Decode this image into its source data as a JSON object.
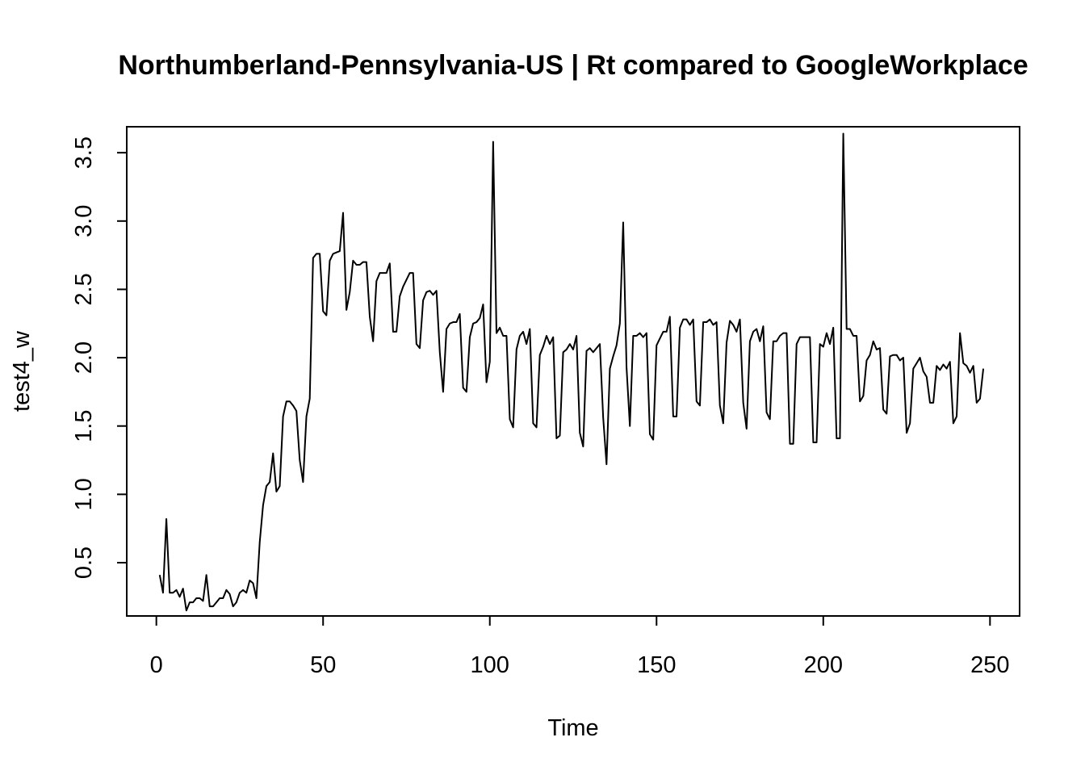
{
  "chart_data": {
    "type": "line",
    "title": "Northumberland-Pennsylvania-US | Rt compared to GoogleWorkplace",
    "xlabel": "Time",
    "ylabel": "test4_w",
    "xlim": [
      -8.88,
      258.88
    ],
    "ylim": [
      0.11,
      3.69
    ],
    "x_ticks": [
      0,
      50,
      100,
      150,
      200,
      250
    ],
    "x_tick_labels": [
      "0",
      "50",
      "100",
      "150",
      "200",
      "250"
    ],
    "y_ticks": [
      0.5,
      1.0,
      1.5,
      2.0,
      2.5,
      3.0,
      3.5
    ],
    "y_tick_labels": [
      "0.5",
      "1.0",
      "1.5",
      "2.0",
      "2.5",
      "3.0",
      "3.5"
    ],
    "grid": false,
    "series": [
      {
        "color": "#000000",
        "x_start": 1,
        "values": [
          0.41,
          0.28,
          0.82,
          0.28,
          0.28,
          0.3,
          0.25,
          0.31,
          0.15,
          0.21,
          0.21,
          0.24,
          0.24,
          0.22,
          0.41,
          0.18,
          0.18,
          0.21,
          0.24,
          0.24,
          0.3,
          0.27,
          0.18,
          0.21,
          0.28,
          0.3,
          0.28,
          0.37,
          0.35,
          0.24,
          0.65,
          0.92,
          1.06,
          1.09,
          1.3,
          1.02,
          1.06,
          1.57,
          1.68,
          1.68,
          1.65,
          1.61,
          1.25,
          1.09,
          1.57,
          1.7,
          2.73,
          2.76,
          2.76,
          2.34,
          2.31,
          2.71,
          2.76,
          2.77,
          2.78,
          3.06,
          2.35,
          2.48,
          2.71,
          2.68,
          2.68,
          2.7,
          2.7,
          2.3,
          2.12,
          2.56,
          2.62,
          2.62,
          2.62,
          2.69,
          2.19,
          2.19,
          2.45,
          2.52,
          2.57,
          2.62,
          2.62,
          2.1,
          2.07,
          2.42,
          2.48,
          2.49,
          2.46,
          2.49,
          2.04,
          1.75,
          2.21,
          2.25,
          2.26,
          2.26,
          2.32,
          1.78,
          1.75,
          2.15,
          2.25,
          2.26,
          2.29,
          2.39,
          1.82,
          1.97,
          3.58,
          2.18,
          2.22,
          2.16,
          2.16,
          1.55,
          1.49,
          2.06,
          2.16,
          2.19,
          2.1,
          2.21,
          1.52,
          1.49,
          2.02,
          2.08,
          2.16,
          2.1,
          2.15,
          1.41,
          1.43,
          2.04,
          2.06,
          2.1,
          2.06,
          2.16,
          1.45,
          1.35,
          2.05,
          2.07,
          2.04,
          2.07,
          2.1,
          1.56,
          1.22,
          1.92,
          2.01,
          2.09,
          2.25,
          2.99,
          1.93,
          1.5,
          2.16,
          2.16,
          2.18,
          2.15,
          2.18,
          1.44,
          1.4,
          2.09,
          2.14,
          2.19,
          2.19,
          2.3,
          1.57,
          1.57,
          2.22,
          2.28,
          2.28,
          2.24,
          2.28,
          1.68,
          1.65,
          2.26,
          2.26,
          2.28,
          2.24,
          2.26,
          1.65,
          1.52,
          2.11,
          2.27,
          2.24,
          2.19,
          2.28,
          1.67,
          1.48,
          2.12,
          2.19,
          2.21,
          2.12,
          2.23,
          1.6,
          1.55,
          2.12,
          2.12,
          2.16,
          2.18,
          2.18,
          1.37,
          1.37,
          2.1,
          2.15,
          2.15,
          2.15,
          2.15,
          1.38,
          1.38,
          2.1,
          2.08,
          2.18,
          2.1,
          2.22,
          1.41,
          1.41,
          3.64,
          2.21,
          2.21,
          2.16,
          2.16,
          1.68,
          1.72,
          1.98,
          2.02,
          2.12,
          2.06,
          2.07,
          1.62,
          1.59,
          2.01,
          2.02,
          2.02,
          1.98,
          2.0,
          1.45,
          1.52,
          1.92,
          1.96,
          2.0,
          1.9,
          1.86,
          1.67,
          1.67,
          1.94,
          1.91,
          1.95,
          1.92,
          1.97,
          1.52,
          1.57,
          2.18,
          1.96,
          1.94,
          1.89,
          1.94,
          1.67,
          1.7,
          1.92
        ]
      }
    ]
  }
}
